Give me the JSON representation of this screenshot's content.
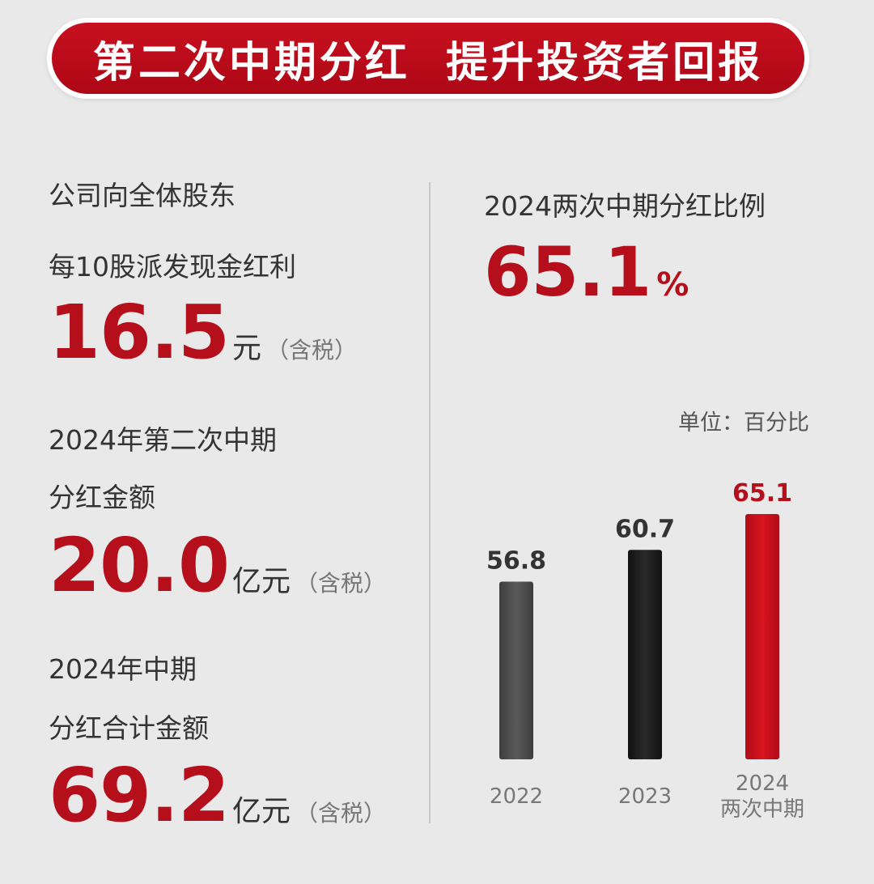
{
  "banner": {
    "title": "第二次中期分红  提升投资者回报"
  },
  "left": {
    "item1": {
      "line1": "公司向全体股东",
      "line2": "每10股派发现金红利",
      "value": "16.5",
      "unit": "元",
      "tax": "（含税）"
    },
    "item2": {
      "line1": "2024年第二次中期",
      "line2": "分红金额",
      "value": "20.0",
      "unit": "亿元",
      "tax": "（含税）"
    },
    "item3": {
      "line1": "2024年中期",
      "line2": "分红合计金额",
      "value": "69.2",
      "unit": "亿元",
      "tax": "（含税）"
    }
  },
  "right": {
    "ratio_label": "2024两次中期分红比例",
    "ratio_value": "65.1",
    "ratio_pct": "%",
    "unit_note": "单位：百分比"
  },
  "colors": {
    "accent": "#b50f1b",
    "bar_2022": "#4a4a4a",
    "bar_2023": "#1c1c1c",
    "bar_2024": "#c50f1d"
  },
  "chart_data": {
    "type": "bar",
    "categories": [
      "2022",
      "2023",
      "2024\n两次中期"
    ],
    "values": [
      56.8,
      60.7,
      65.1
    ],
    "labels": [
      "56.8",
      "60.7",
      "65.1"
    ],
    "title": "",
    "xlabel": "",
    "ylabel": "",
    "grid": false
  }
}
